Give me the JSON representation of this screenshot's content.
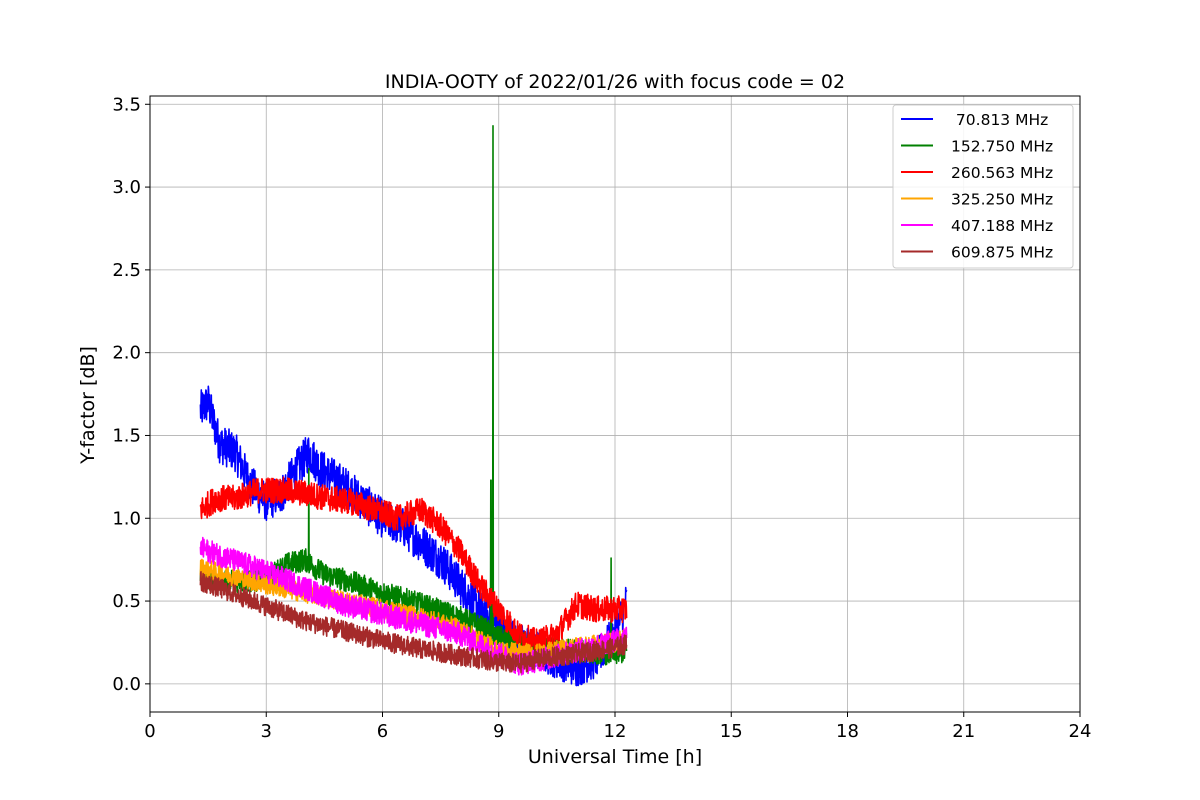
{
  "chart_data": {
    "type": "line",
    "title": "INDIA-OOTY of 2022/01/26 with focus code = 02",
    "xlabel": "Universal Time [h]",
    "ylabel": "Y-factor [dB]",
    "xlim": [
      0,
      24
    ],
    "ylim": [
      -0.17,
      3.55
    ],
    "xticks": [
      0,
      3,
      6,
      9,
      12,
      15,
      18,
      21,
      24
    ],
    "yticks": [
      0.0,
      0.5,
      1.0,
      1.5,
      2.0,
      2.5,
      3.0,
      3.5
    ],
    "xtick_labels": [
      "0",
      "3",
      "6",
      "9",
      "12",
      "15",
      "18",
      "21",
      "24"
    ],
    "ytick_labels": [
      "0.0",
      "0.5",
      "1.0",
      "1.5",
      "2.0",
      "2.5",
      "3.0",
      "3.5"
    ],
    "grid": true,
    "legend_position": "top-right",
    "series": [
      {
        "name": " 70.813 MHz",
        "color": "#0000ff",
        "noise": 0.12,
        "x": [
          1.3,
          1.5,
          1.8,
          2.2,
          2.6,
          3.0,
          3.4,
          3.8,
          4.1,
          4.4,
          5.0,
          5.5,
          6.0,
          6.5,
          7.0,
          7.5,
          8.0,
          8.5,
          9.0,
          9.5,
          10.0,
          10.5,
          11.0,
          11.5,
          12.0,
          12.3
        ],
        "y": [
          1.65,
          1.7,
          1.45,
          1.4,
          1.2,
          1.1,
          1.15,
          1.3,
          1.4,
          1.3,
          1.2,
          1.1,
          1.0,
          0.95,
          0.85,
          0.75,
          0.6,
          0.45,
          0.35,
          0.25,
          0.2,
          0.15,
          0.1,
          0.15,
          0.3,
          0.5
        ]
      },
      {
        "name": "152.750 MHz",
        "color": "#008000",
        "noise": 0.07,
        "spikes": [
          {
            "x": 8.85,
            "y": 3.37
          },
          {
            "x": 8.8,
            "y": 1.23
          },
          {
            "x": 11.9,
            "y": 0.76
          },
          {
            "x": 4.1,
            "y": 1.3
          }
        ],
        "x": [
          1.3,
          2.0,
          3.0,
          3.5,
          4.0,
          4.5,
          5.0,
          6.0,
          7.0,
          8.0,
          8.5,
          9.0,
          9.5,
          10.0,
          11.0,
          12.0,
          12.3
        ],
        "y": [
          0.65,
          0.62,
          0.63,
          0.72,
          0.75,
          0.66,
          0.63,
          0.55,
          0.48,
          0.4,
          0.35,
          0.28,
          0.25,
          0.22,
          0.2,
          0.18,
          0.2
        ]
      },
      {
        "name": "260.563 MHz",
        "color": "#ff0000",
        "noise": 0.08,
        "x": [
          1.3,
          1.7,
          2.2,
          2.8,
          3.4,
          4.0,
          4.6,
          5.2,
          5.8,
          6.4,
          7.0,
          7.5,
          8.0,
          8.5,
          9.0,
          9.5,
          10.0,
          10.5,
          11.0,
          11.5,
          12.0,
          12.3
        ],
        "y": [
          1.05,
          1.12,
          1.12,
          1.17,
          1.17,
          1.15,
          1.12,
          1.1,
          1.05,
          1.0,
          1.05,
          0.95,
          0.8,
          0.6,
          0.45,
          0.3,
          0.25,
          0.3,
          0.48,
          0.45,
          0.45,
          0.45
        ]
      },
      {
        "name": "325.250 MHz",
        "color": "#ffa500",
        "noise": 0.06,
        "x": [
          1.3,
          2.0,
          3.0,
          4.0,
          5.0,
          6.0,
          7.0,
          8.0,
          9.0,
          10.0,
          11.0,
          12.0,
          12.3
        ],
        "y": [
          0.7,
          0.66,
          0.6,
          0.55,
          0.5,
          0.45,
          0.4,
          0.33,
          0.2,
          0.18,
          0.22,
          0.25,
          0.28
        ]
      },
      {
        "name": "407.188 MHz",
        "color": "#ff00ff",
        "noise": 0.07,
        "x": [
          1.3,
          2.0,
          3.0,
          4.0,
          5.0,
          6.0,
          7.0,
          8.0,
          9.0,
          9.5,
          10.0,
          11.0,
          12.0,
          12.3
        ],
        "y": [
          0.82,
          0.76,
          0.68,
          0.58,
          0.48,
          0.42,
          0.36,
          0.3,
          0.18,
          0.12,
          0.14,
          0.2,
          0.26,
          0.3
        ]
      },
      {
        "name": "609.875 MHz",
        "color": "#a52a2a",
        "noise": 0.06,
        "x": [
          1.3,
          2.0,
          3.0,
          4.0,
          5.0,
          6.0,
          7.0,
          8.0,
          9.0,
          9.5,
          10.0,
          11.0,
          12.0,
          12.3
        ],
        "y": [
          0.62,
          0.56,
          0.47,
          0.38,
          0.32,
          0.26,
          0.21,
          0.17,
          0.13,
          0.12,
          0.15,
          0.18,
          0.22,
          0.24
        ]
      }
    ]
  }
}
